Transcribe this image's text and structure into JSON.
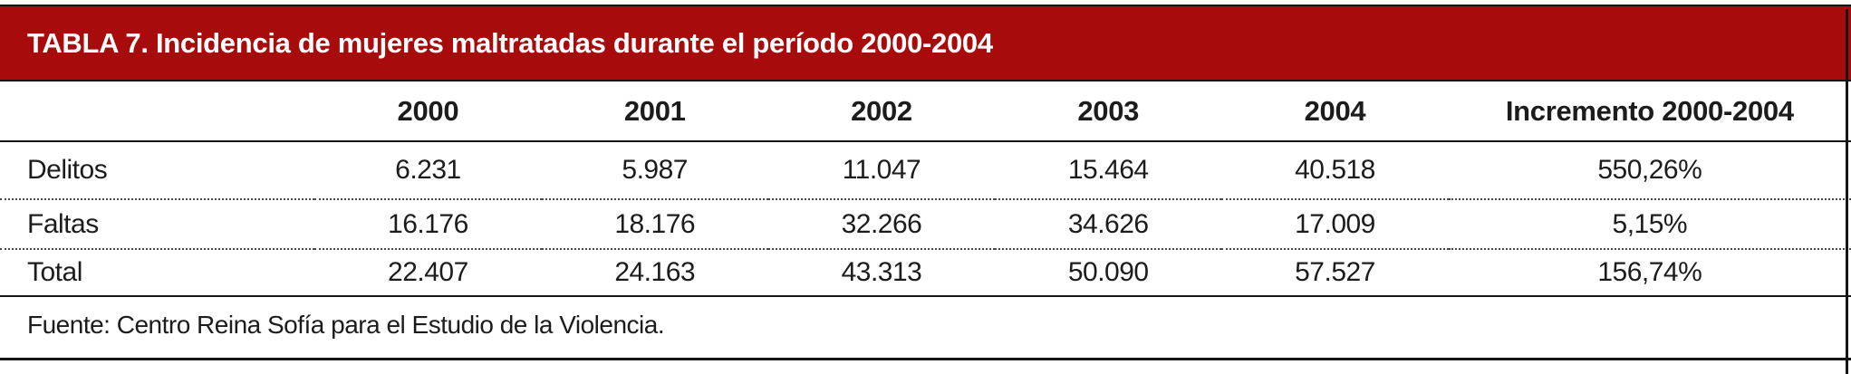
{
  "table": {
    "title": "TABLA 7. Incidencia de mujeres maltratadas durante el período 2000-2004",
    "columns": [
      "",
      "2000",
      "2001",
      "2002",
      "2003",
      "2004",
      "Incremento 2000-2004"
    ],
    "rows": [
      {
        "label": "Delitos",
        "values": [
          "6.231",
          "5.987",
          "11.047",
          "15.464",
          "40.518",
          "550,26%"
        ]
      },
      {
        "label": "Faltas",
        "values": [
          "16.176",
          "18.176",
          "32.266",
          "34.626",
          "17.009",
          "5,15%"
        ]
      },
      {
        "label": "Total",
        "values": [
          "22.407",
          "24.163",
          "43.313",
          "50.090",
          "57.527",
          "156,74%"
        ]
      }
    ],
    "source": "Fuente: Centro Reina Sofía para el Estudio de la Violencia."
  },
  "chart_data": {
    "type": "table",
    "title": "TABLA 7. Incidencia de mujeres maltratadas durante el período 2000-2004",
    "categories": [
      "2000",
      "2001",
      "2002",
      "2003",
      "2004"
    ],
    "series": [
      {
        "name": "Delitos",
        "values": [
          6231,
          5987,
          11047,
          15464,
          40518
        ],
        "incremento_2000_2004": "550,26%"
      },
      {
        "name": "Faltas",
        "values": [
          16176,
          18176,
          32266,
          34626,
          17009
        ],
        "incremento_2000_2004": "5,15%"
      },
      {
        "name": "Total",
        "values": [
          22407,
          24163,
          43313,
          50090,
          57527
        ],
        "incremento_2000_2004": "156,74%"
      }
    ],
    "source": "Fuente: Centro Reina Sofía para el Estudio de la Violencia."
  },
  "colors": {
    "banner_background": "#a70b0b",
    "banner_text": "#ffffff",
    "body_text": "#1c1c1c",
    "rule": "#151515"
  }
}
